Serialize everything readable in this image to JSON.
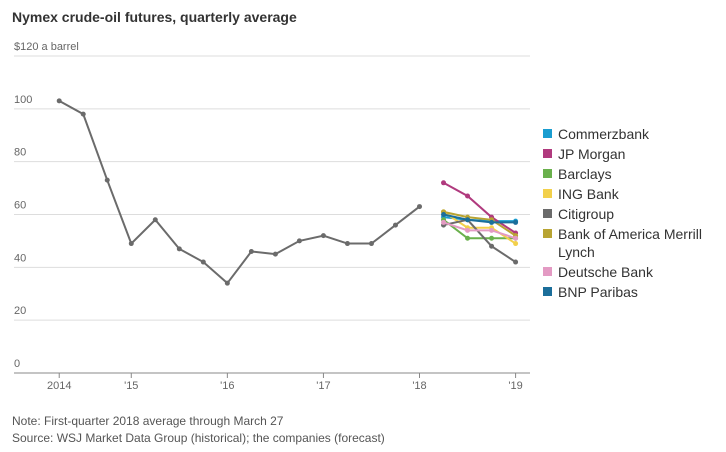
{
  "chart_data": {
    "type": "line",
    "title": "Nymex crude-oil futures, quarterly average",
    "xlim": [
      2014.05,
      2019.15
    ],
    "xticks": [
      {
        "value": 2014.25,
        "label": "2014"
      },
      {
        "value": 2015,
        "label": "'15"
      },
      {
        "value": 2016,
        "label": "'16"
      },
      {
        "value": 2017,
        "label": "'17"
      },
      {
        "value": 2018,
        "label": "'18"
      },
      {
        "value": 2019,
        "label": "'19"
      }
    ],
    "ylim": [
      0,
      120
    ],
    "yticks": [
      0,
      20,
      40,
      60,
      80,
      100,
      {
        "value": 120,
        "label": "$120 a barrel"
      }
    ],
    "grid": true,
    "history": {
      "color": "#6b6b6b",
      "x": [
        2014.25,
        2014.5,
        2014.75,
        2015,
        2015.25,
        2015.5,
        2015.75,
        2016,
        2016.25,
        2016.5,
        2016.75,
        2017,
        2017.25,
        2017.5,
        2017.75,
        2018
      ],
      "values": [
        103,
        98,
        73,
        49,
        58,
        47,
        42,
        34,
        46,
        45,
        50,
        52,
        49,
        49,
        56,
        63
      ]
    },
    "forecast_x": [
      2018.25,
      2018.5,
      2018.75,
      2019
    ],
    "series": [
      {
        "name": "Commerzbank",
        "color": "#1a9dd0",
        "values": [
          59,
          58,
          57.5,
          57.5
        ]
      },
      {
        "name": "JP Morgan",
        "color": "#b03a7e",
        "values": [
          72,
          67,
          59,
          53
        ]
      },
      {
        "name": "Barclays",
        "color": "#6ab04c",
        "values": [
          58,
          51,
          51,
          51
        ]
      },
      {
        "name": "ING Bank",
        "color": "#f2d04b",
        "values": [
          61,
          55,
          55,
          49
        ]
      },
      {
        "name": "Citigroup",
        "color": "#6b6b6b",
        "values": [
          56,
          58,
          48,
          42
        ]
      },
      {
        "name": "Bank of America Merrill Lynch",
        "color": "#b8a432",
        "values": [
          61,
          59,
          58,
          52
        ]
      },
      {
        "name": "Deutsche Bank",
        "color": "#e39ac3",
        "values": [
          57,
          54,
          54,
          51
        ]
      },
      {
        "name": "BNP Paribas",
        "color": "#1b6e9a",
        "values": [
          60,
          58,
          57,
          57
        ]
      }
    ],
    "legend": "right",
    "notes": [
      "Note: First-quarter 2018 average through March 27",
      "Source: WSJ Market Data Group (historical); the companies (forecast)"
    ]
  }
}
